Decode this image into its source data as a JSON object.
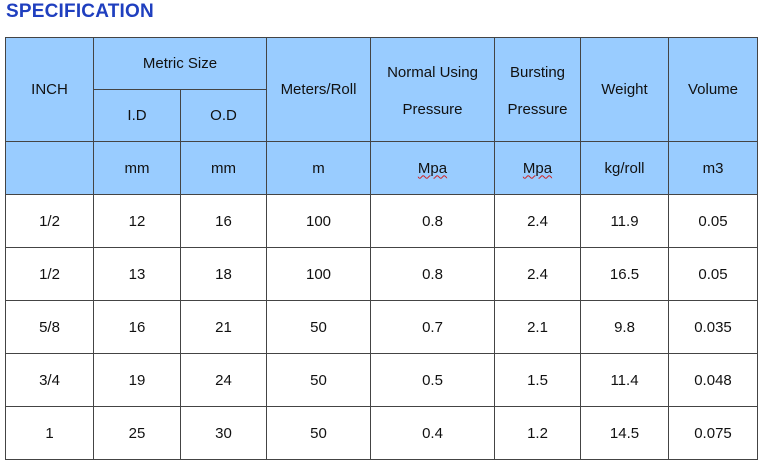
{
  "title": "SPECIFICATION",
  "table": {
    "header": {
      "inch": "INCH",
      "metric_size": "Metric Size",
      "id": "I.D",
      "od": "O.D",
      "meters_per_roll": "Meters/Roll",
      "normal_pressure": [
        "Normal Using",
        "Pressure"
      ],
      "bursting_pressure": [
        "Bursting",
        "Pressure"
      ],
      "weight": "Weight",
      "volume": "Volume"
    },
    "units": [
      "mm",
      "mm",
      "m",
      "Mpa",
      "Mpa",
      "kg/roll",
      "m3"
    ],
    "rows": [
      [
        "1/2",
        "12",
        "16",
        "100",
        "0.8",
        "2.4",
        "11.9",
        "0.05"
      ],
      [
        "1/2",
        "13",
        "18",
        "100",
        "0.8",
        "2.4",
        "16.5",
        "0.05"
      ],
      [
        "5/8",
        "16",
        "21",
        "50",
        "0.7",
        "2.1",
        "9.8",
        "0.035"
      ],
      [
        "3/4",
        "19",
        "24",
        "50",
        "0.5",
        "1.5",
        "11.4",
        "0.048"
      ],
      [
        "1",
        "25",
        "30",
        "50",
        "0.4",
        "1.2",
        "14.5",
        "0.075"
      ]
    ]
  }
}
